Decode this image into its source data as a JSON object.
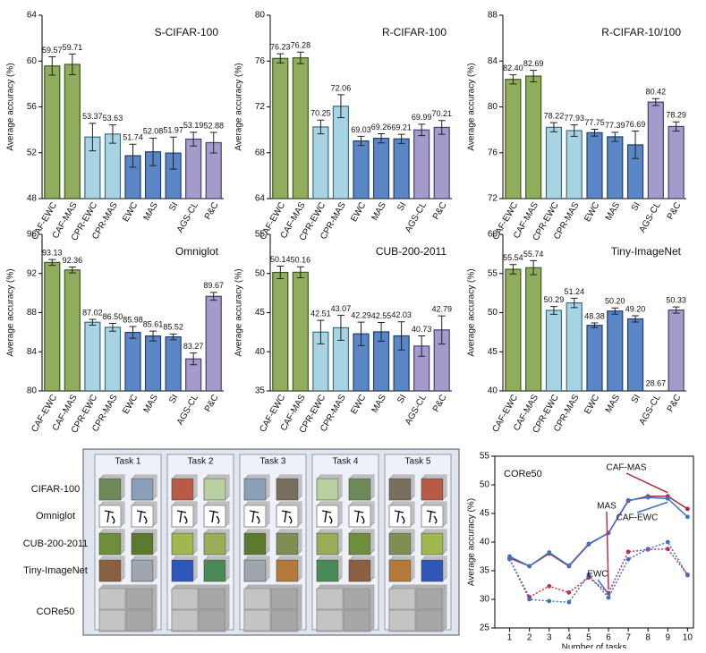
{
  "chart_data": [
    {
      "type": "bar",
      "title": "S-CIFAR-100",
      "ylabel": "Average accuracy (%)",
      "categories": [
        "CAF-EWC",
        "CAF-MAS",
        "CPR-EWC",
        "CPR-MAS",
        "EWC",
        "MAS",
        "SI",
        "AGS-CL",
        "P&C"
      ],
      "values": [
        59.57,
        59.71,
        53.37,
        53.63,
        51.74,
        52.08,
        51.97,
        53.19,
        52.88
      ],
      "value_labels": [
        "59.57",
        "59.71",
        "53.37",
        "53.63",
        "51.74",
        "52.08",
        "51.97",
        "53.19",
        "52.88"
      ],
      "errors": [
        0.8,
        0.9,
        1.2,
        0.8,
        1.0,
        1.2,
        1.4,
        0.6,
        0.9
      ],
      "colors": [
        "#8fad5c",
        "#8fad5c",
        "#a8d3e3",
        "#a8d3e3",
        "#5a86c5",
        "#5a86c5",
        "#5a86c5",
        "#a49bcb",
        "#a49bcb"
      ],
      "ylim": [
        48,
        64
      ],
      "yticks": [
        48,
        52,
        56,
        60,
        64
      ]
    },
    {
      "type": "bar",
      "title": "R-CIFAR-100",
      "ylabel": "Average accuracy (%)",
      "categories": [
        "CAF-EWC",
        "CAF-MAS",
        "CPR-EWC",
        "CPR-MAS",
        "EWC",
        "MAS",
        "SI",
        "AGS-CL",
        "P&C"
      ],
      "values": [
        76.23,
        76.28,
        70.25,
        72.06,
        69.03,
        69.26,
        69.21,
        69.99,
        70.21
      ],
      "value_labels": [
        "76.23",
        "76.28",
        "70.25",
        "72.06",
        "69.03",
        "69.26",
        "69.21",
        "69.99",
        "70.21"
      ],
      "errors": [
        0.4,
        0.5,
        0.6,
        1.0,
        0.4,
        0.4,
        0.4,
        0.5,
        0.6
      ],
      "colors": [
        "#8fad5c",
        "#8fad5c",
        "#a8d3e3",
        "#a8d3e3",
        "#5a86c5",
        "#5a86c5",
        "#5a86c5",
        "#a49bcb",
        "#a49bcb"
      ],
      "ylim": [
        64,
        80
      ],
      "yticks": [
        64,
        68,
        72,
        76,
        80
      ]
    },
    {
      "type": "bar",
      "title": "R-CIFAR-10/100",
      "ylabel": "Average accuracy (%)",
      "categories": [
        "CAF-EWC",
        "CAF-MAS",
        "CPR-EWC",
        "CPR-MAS",
        "EWC",
        "MAS",
        "SI",
        "AGS-CL",
        "P&C"
      ],
      "values": [
        82.4,
        82.69,
        78.22,
        77.93,
        77.75,
        77.39,
        76.69,
        80.42,
        78.29
      ],
      "value_labels": [
        "82.40",
        "82.69",
        "78.22",
        "77.93",
        "77.75",
        "77.39",
        "76.69",
        "80.42",
        "78.29"
      ],
      "errors": [
        0.4,
        0.5,
        0.4,
        0.5,
        0.3,
        0.4,
        1.2,
        0.3,
        0.4
      ],
      "colors": [
        "#8fad5c",
        "#8fad5c",
        "#a8d3e3",
        "#a8d3e3",
        "#5a86c5",
        "#5a86c5",
        "#5a86c5",
        "#a49bcb",
        "#a49bcb"
      ],
      "ylim": [
        72,
        88
      ],
      "yticks": [
        72,
        76,
        80,
        84,
        88
      ]
    },
    {
      "type": "bar",
      "title": "Omniglot",
      "ylabel": "Average accuracy (%)",
      "categories": [
        "CAF-EWC",
        "CAF-MAS",
        "CPR-EWC",
        "CPR-MAS",
        "EWC",
        "MAS",
        "SI",
        "AGS-CL",
        "P&C"
      ],
      "values": [
        93.13,
        92.36,
        87.02,
        86.5,
        85.98,
        85.61,
        85.52,
        83.27,
        89.67
      ],
      "value_labels": [
        "93.13",
        "92.36",
        "87.02",
        "86.50",
        "85.98",
        "85.61",
        "85.52",
        "83.27",
        "89.67"
      ],
      "errors": [
        0.3,
        0.3,
        0.3,
        0.4,
        0.6,
        0.5,
        0.3,
        0.6,
        0.4
      ],
      "colors": [
        "#8fad5c",
        "#8fad5c",
        "#a8d3e3",
        "#a8d3e3",
        "#5a86c5",
        "#5a86c5",
        "#5a86c5",
        "#a49bcb",
        "#a49bcb"
      ],
      "ylim": [
        80,
        96
      ],
      "yticks": [
        80,
        84,
        88,
        92,
        96
      ]
    },
    {
      "type": "bar",
      "title": "CUB-200-2011",
      "ylabel": "Average accuracy (%)",
      "categories": [
        "CAF-EWC",
        "CAF-MAS",
        "CPR-EWC",
        "CPR-MAS",
        "EWC",
        "MAS",
        "SI",
        "AGS-CL",
        "P&C"
      ],
      "values": [
        50.14,
        50.16,
        42.51,
        43.07,
        42.29,
        42.55,
        42.03,
        40.73,
        42.79
      ],
      "value_labels": [
        "50.14",
        "50.16",
        "42.51",
        "43.07",
        "42.29",
        "42.55",
        "42.03",
        "40.73",
        "42.79"
      ],
      "errors": [
        0.8,
        0.7,
        1.5,
        1.6,
        1.5,
        1.2,
        1.8,
        1.3,
        1.8
      ],
      "colors": [
        "#8fad5c",
        "#8fad5c",
        "#a8d3e3",
        "#a8d3e3",
        "#5a86c5",
        "#5a86c5",
        "#5a86c5",
        "#a49bcb",
        "#a49bcb"
      ],
      "ylim": [
        35,
        55
      ],
      "yticks": [
        35,
        40,
        45,
        50,
        55
      ]
    },
    {
      "type": "bar",
      "title": "Tiny-ImageNet",
      "ylabel": "Average accuracy (%)",
      "categories": [
        "CAF-EWC",
        "CAF-MAS",
        "CPR-EWC",
        "CPR-MAS",
        "EWC",
        "MAS",
        "SI",
        "AGS-CL",
        "P&C"
      ],
      "values": [
        55.54,
        55.74,
        50.29,
        51.24,
        48.38,
        50.2,
        49.2,
        28.67,
        50.33
      ],
      "value_labels": [
        "55.54",
        "55.74",
        "50.29",
        "51.24",
        "48.38",
        "50.20",
        "49.20",
        "28.67",
        "50.33"
      ],
      "errors": [
        0.6,
        0.9,
        0.5,
        0.6,
        0.3,
        0.4,
        0.4,
        0.0,
        0.4
      ],
      "colors": [
        "#8fad5c",
        "#8fad5c",
        "#a8d3e3",
        "#a8d3e3",
        "#5a86c5",
        "#5a86c5",
        "#5a86c5",
        "#a49bcb",
        "#a49bcb"
      ],
      "ylim": [
        40,
        60
      ],
      "yticks": [
        40,
        45,
        50,
        55,
        60
      ]
    },
    {
      "type": "line",
      "title": "CORe50",
      "xlabel": "Number of tasks",
      "ylabel": "Average accuracy (%)",
      "x": [
        1,
        2,
        3,
        4,
        5,
        6,
        7,
        8,
        9,
        10
      ],
      "series": [
        {
          "name": "CAF-MAS",
          "color": "#b5263a",
          "style": "solid",
          "values": [
            37.2,
            35.8,
            38.0,
            35.8,
            39.6,
            41.6,
            47.2,
            48.0,
            48.0,
            45.8
          ]
        },
        {
          "name": "CAF-EWC",
          "color": "#3e72c3",
          "style": "solid",
          "values": [
            37.5,
            35.8,
            38.2,
            35.9,
            39.7,
            41.6,
            47.3,
            47.8,
            47.6,
            44.4
          ]
        },
        {
          "name": "MAS",
          "color": "#c0304a",
          "style": "dotted",
          "values": [
            37.0,
            30.4,
            32.3,
            31.2,
            33.8,
            31.1,
            38.3,
            38.7,
            38.8,
            34.3
          ]
        },
        {
          "name": "EWC",
          "color": "#3e72c3",
          "style": "dotted",
          "values": [
            37.0,
            30.0,
            29.7,
            29.5,
            34.3,
            30.3,
            37.0,
            38.8,
            40.0,
            34.2
          ]
        }
      ],
      "xlim": [
        0.25,
        10.3
      ],
      "xticks": [
        1,
        2,
        3,
        4,
        5,
        6,
        7,
        8,
        9,
        10
      ],
      "ylim": [
        25,
        55
      ],
      "yticks": [
        25,
        30,
        35,
        40,
        45,
        50,
        55
      ]
    }
  ],
  "diagram": {
    "tasks": [
      "Task 1",
      "Task 2",
      "Task 3",
      "Task 4",
      "Task 5"
    ],
    "datasets": [
      "CIFAR-100",
      "Omniglot",
      "CUB-200-2011",
      "Tiny-ImageNet",
      "CORe50"
    ]
  }
}
